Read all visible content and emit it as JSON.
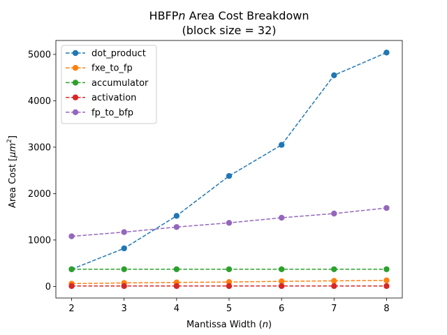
{
  "chart_data": {
    "type": "line",
    "title_line1": "HBFP",
    "title_italic": "n",
    "title_line1_rest": " Area Cost Breakdown",
    "title_line2": "(block size = 32)",
    "xlabel_prefix": "Mantissa Width (",
    "xlabel_var": "n",
    "xlabel_suffix": ")",
    "ylabel_prefix": "Area Cost [",
    "ylabel_unit": "μm",
    "ylabel_exp": "2",
    "ylabel_suffix": "]",
    "x": [
      2,
      3,
      4,
      5,
      6,
      7,
      8
    ],
    "xlim": [
      1.7,
      8.3
    ],
    "ylim": [
      -250,
      5300
    ],
    "xticks": [
      2,
      3,
      4,
      5,
      6,
      7,
      8
    ],
    "yticks": [
      0,
      1000,
      2000,
      3000,
      4000,
      5000
    ],
    "grid": false,
    "legend_position": "top-left",
    "line_style": "dashed",
    "marker": "circle",
    "series": [
      {
        "name": "dot_product",
        "color": "#1f77b4",
        "values": [
          370,
          820,
          1520,
          2380,
          3050,
          4550,
          5040
        ]
      },
      {
        "name": "fxe_to_fp",
        "color": "#ff7f0e",
        "values": [
          60,
          75,
          85,
          95,
          110,
          120,
          130
        ]
      },
      {
        "name": "accumulator",
        "color": "#2ca02c",
        "values": [
          370,
          370,
          370,
          370,
          370,
          370,
          370
        ]
      },
      {
        "name": "activation",
        "color": "#d62728",
        "values": [
          8,
          8,
          8,
          8,
          8,
          8,
          8
        ]
      },
      {
        "name": "fp_to_bfp",
        "color": "#9467bd",
        "values": [
          1080,
          1170,
          1280,
          1370,
          1480,
          1570,
          1690
        ]
      }
    ]
  }
}
